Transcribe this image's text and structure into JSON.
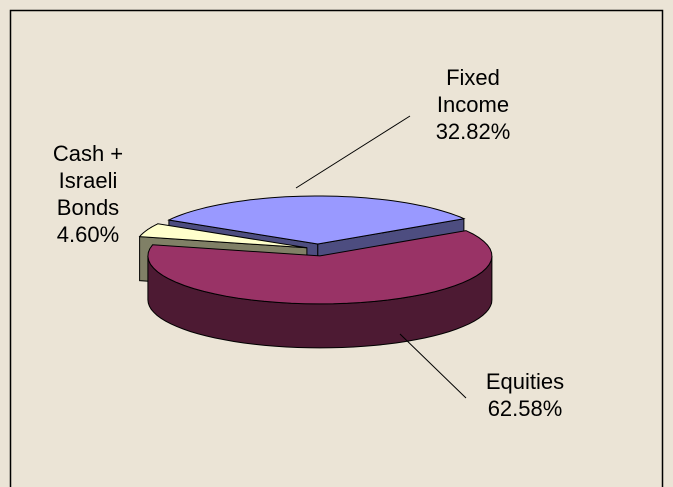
{
  "chart_data": {
    "type": "pie3d",
    "categories": [
      "Fixed Income",
      "Equities",
      "Cash + Israeli Bonds"
    ],
    "values": [
      32.82,
      62.58,
      4.6
    ],
    "value_labels": [
      "32.82%",
      "62.58%",
      "4.60%"
    ],
    "colors": [
      "#9999ff",
      "#993366",
      "#ffffcc"
    ]
  }
}
